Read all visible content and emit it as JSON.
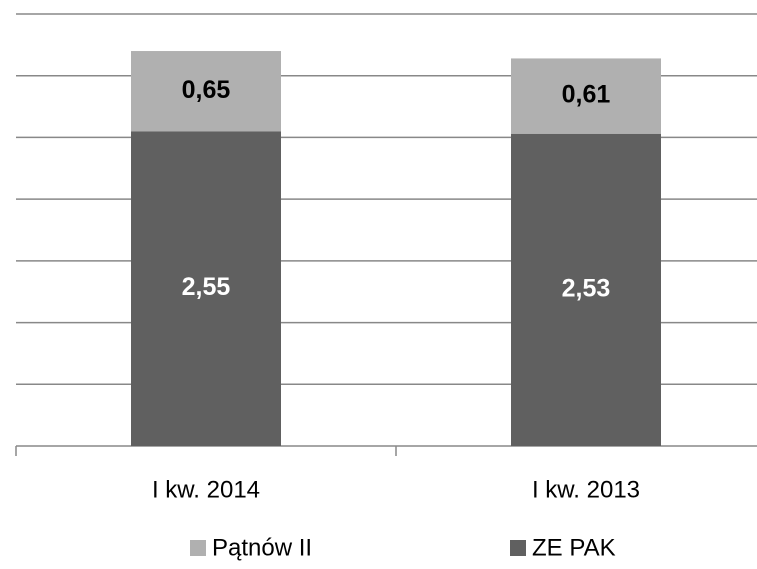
{
  "chart_data": {
    "type": "stacked_bar",
    "categories": [
      "I kw. 2014",
      "I kw. 2013"
    ],
    "series": [
      {
        "name": "ZE PAK",
        "color": "#606060",
        "values": [
          2.55,
          2.53
        ],
        "value_labels": [
          "2,55",
          "2,53"
        ],
        "label_color": "#ffffff"
      },
      {
        "name": "Pątnów II",
        "color": "#b0b0b0",
        "values": [
          0.65,
          0.61
        ],
        "value_labels": [
          "0,65",
          "0,61"
        ],
        "label_color": "#000000"
      }
    ],
    "ylim": [
      0,
      3.5
    ],
    "yticks": [
      0,
      0.5,
      1,
      1.5,
      2,
      2.5,
      3,
      3.5
    ],
    "grid": true,
    "legend": "bottom"
  }
}
